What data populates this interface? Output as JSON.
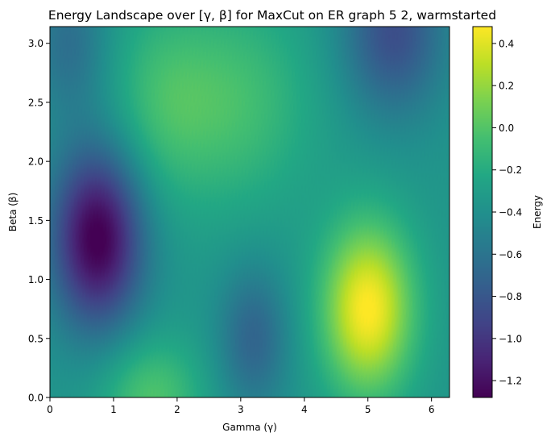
{
  "chart_data": {
    "type": "heatmap",
    "title": "Energy Landscape over [γ, β] for MaxCut on ER graph 5 2, warmstarted",
    "xlabel": "Gamma (γ)",
    "ylabel": "Beta (β)",
    "xlim": [
      0,
      6.283
    ],
    "ylim": [
      0,
      3.1416
    ],
    "x_ticks": [
      0,
      1,
      2,
      3,
      4,
      5,
      6
    ],
    "y_ticks": [
      0.0,
      0.5,
      1.0,
      1.5,
      2.0,
      2.5,
      3.0
    ],
    "x_tick_labels": [
      "0",
      "1",
      "2",
      "3",
      "4",
      "5",
      "6"
    ],
    "y_tick_labels": [
      "0.0",
      "0.5",
      "1.0",
      "1.5",
      "2.0",
      "2.5",
      "3.0"
    ],
    "colorbar": {
      "label": "Energy",
      "range": [
        -1.28,
        0.48
      ],
      "ticks": [
        -1.2,
        -1.0,
        -0.8,
        -0.6,
        -0.4,
        -0.2,
        0.0,
        0.2,
        0.4
      ],
      "tick_labels": [
        "−1.2",
        "−1.0",
        "−0.8",
        "−0.6",
        "−0.4",
        "−0.2",
        "0.0",
        "0.2",
        "0.4"
      ],
      "colormap": "viridis"
    },
    "features": [
      {
        "gamma": 0.75,
        "beta": 1.35,
        "energy": -1.27
      },
      {
        "gamma": 5.0,
        "beta": 0.75,
        "energy": 0.45
      },
      {
        "gamma": 1.6,
        "beta": 0.05,
        "energy": 0.1
      },
      {
        "gamma": 2.8,
        "beta": 2.5,
        "energy": -0.05
      },
      {
        "gamma": 5.4,
        "beta": 3.0,
        "energy": -0.85
      },
      {
        "gamma": 3.2,
        "beta": 0.5,
        "energy": -0.7
      }
    ]
  }
}
